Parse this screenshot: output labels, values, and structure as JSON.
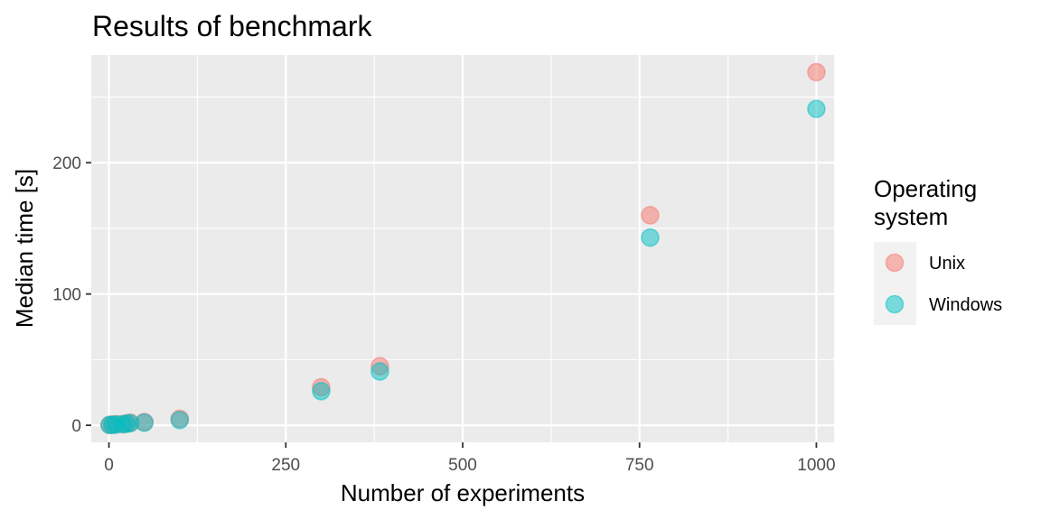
{
  "chart_data": {
    "type": "scatter",
    "title": "Results of benchmark",
    "xlabel": "Number of experiments",
    "ylabel": "Median time [s]",
    "xlim": [
      -25,
      1025
    ],
    "ylim": [
      -13,
      282
    ],
    "x_ticks": [
      0,
      250,
      500,
      750,
      1000
    ],
    "y_ticks": [
      0,
      100,
      200
    ],
    "grid": true,
    "legend": {
      "title_lines": [
        "Operating",
        "system"
      ],
      "placement": "right"
    },
    "series": [
      {
        "name": "Unix",
        "color": "#F8766D",
        "points": [
          {
            "x": 1,
            "y": 0.3
          },
          {
            "x": 5,
            "y": 0.5
          },
          {
            "x": 10,
            "y": 0.8
          },
          {
            "x": 20,
            "y": 1.0
          },
          {
            "x": 25,
            "y": 1.5
          },
          {
            "x": 30,
            "y": 2.0
          },
          {
            "x": 50,
            "y": 2.5
          },
          {
            "x": 100,
            "y": 5.0
          },
          {
            "x": 300,
            "y": 29
          },
          {
            "x": 383,
            "y": 45
          },
          {
            "x": 765,
            "y": 160
          },
          {
            "x": 1000,
            "y": 269
          }
        ]
      },
      {
        "name": "Windows",
        "color": "#00BFC4",
        "points": [
          {
            "x": 1,
            "y": 0.3
          },
          {
            "x": 5,
            "y": 0.4
          },
          {
            "x": 10,
            "y": 0.6
          },
          {
            "x": 20,
            "y": 0.8
          },
          {
            "x": 25,
            "y": 1.2
          },
          {
            "x": 30,
            "y": 1.6
          },
          {
            "x": 50,
            "y": 2.0
          },
          {
            "x": 100,
            "y": 4.0
          },
          {
            "x": 300,
            "y": 26
          },
          {
            "x": 383,
            "y": 41
          },
          {
            "x": 765,
            "y": 143
          },
          {
            "x": 1000,
            "y": 241
          }
        ]
      }
    ]
  }
}
